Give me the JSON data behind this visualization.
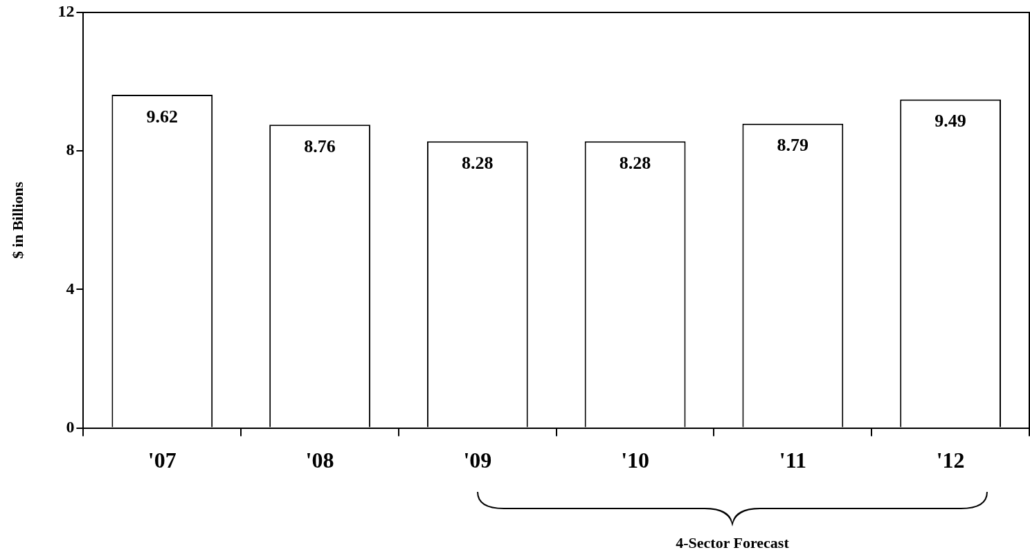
{
  "chart_data": {
    "type": "bar",
    "ylabel": "$ in Billions",
    "categories": [
      "'07",
      "'08",
      "'09",
      "'10",
      "'11",
      "'12"
    ],
    "values": [
      9.62,
      8.76,
      8.28,
      8.28,
      8.79,
      9.49
    ],
    "color": "#ffffff",
    "ylim": [
      0,
      12
    ],
    "yticks": [
      0,
      4,
      8,
      12
    ],
    "grid": false,
    "legend": false,
    "data_labels": true,
    "annotations": [
      "4-Sector Forecast"
    ]
  }
}
